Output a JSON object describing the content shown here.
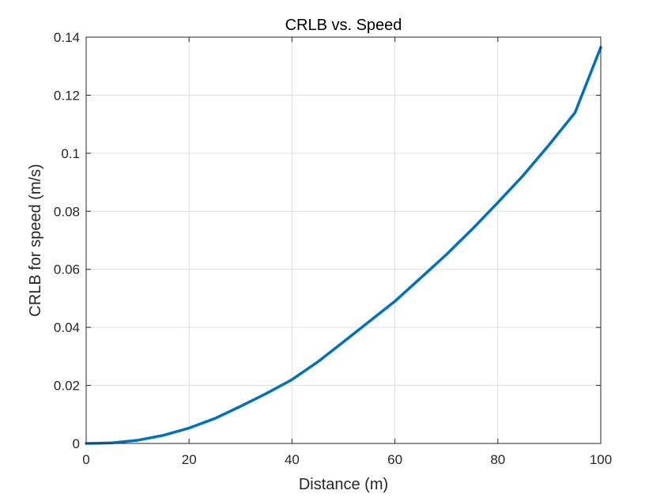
{
  "chart_data": {
    "type": "line",
    "title": "CRLB vs. Speed",
    "xlabel": "Distance (m)",
    "ylabel": "CRLB for speed (m/s)",
    "xlim": [
      0,
      100
    ],
    "ylim": [
      0,
      0.14
    ],
    "xticks": [
      0,
      20,
      40,
      60,
      80,
      100
    ],
    "xtick_labels": [
      "0",
      "20",
      "40",
      "60",
      "80",
      "100"
    ],
    "yticks": [
      0,
      0.02,
      0.04,
      0.06,
      0.08,
      0.1,
      0.12,
      0.14
    ],
    "ytick_labels": [
      "0",
      "0.02",
      "0.04",
      "0.06",
      "0.08",
      "0.1",
      "0.12",
      "0.14"
    ],
    "grid": true,
    "series": [
      {
        "color": "#0072BD",
        "x": [
          0,
          5,
          10,
          15,
          20,
          25,
          30,
          35,
          40,
          45,
          50,
          55,
          60,
          65,
          70,
          75,
          80,
          85,
          90,
          95,
          100
        ],
        "y": [
          0,
          0.0002,
          0.0011,
          0.0028,
          0.0053,
          0.0086,
          0.0128,
          0.0172,
          0.022,
          0.0281,
          0.035,
          0.042,
          0.049,
          0.057,
          0.0651,
          0.0738,
          0.083,
          0.0925,
          0.103,
          0.114,
          0.1365
        ]
      }
    ]
  }
}
